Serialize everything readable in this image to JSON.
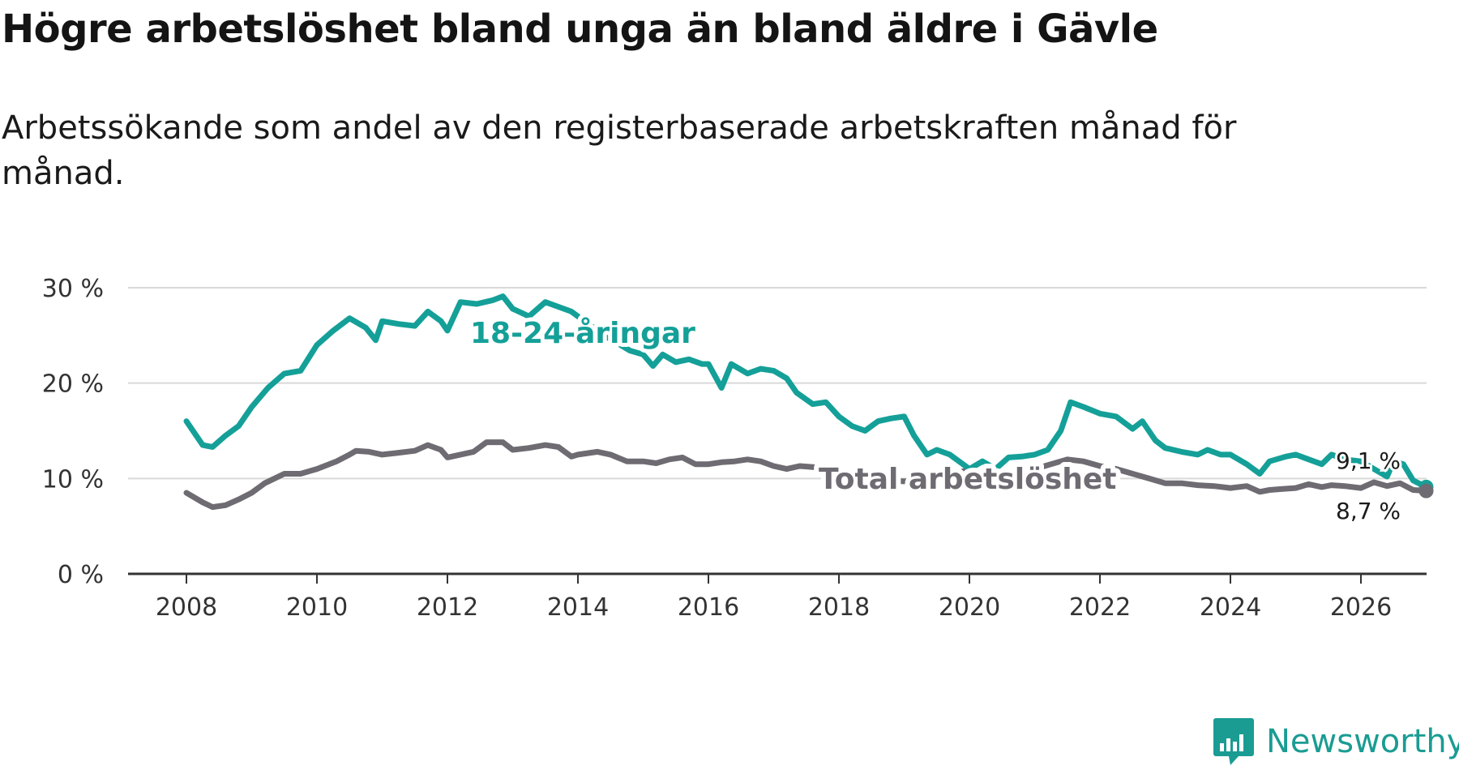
{
  "title": "Högre arbetslöshet bland unga än bland äldre i Gävle",
  "subtitle": "Arbetssökande som andel av den registerbaserade arbetskraften månad för månad.",
  "brand": {
    "name": "Newsworthy",
    "color": "#1a9c93",
    "icon": "bar-chart-speech-bubble-icon"
  },
  "chart_data": {
    "type": "line",
    "title": "Högre arbetslöshet bland unga än bland äldre i Gävle",
    "xlabel": "",
    "ylabel": "",
    "xlim": [
      2008,
      2027
    ],
    "ylim": [
      0,
      30
    ],
    "y_ticks": [
      0,
      10,
      20,
      30
    ],
    "y_tick_labels": [
      "0 %",
      "10 %",
      "20 %",
      "30 %"
    ],
    "x_ticks": [
      2008,
      2010,
      2012,
      2014,
      2016,
      2018,
      2020,
      2022,
      2024,
      2026
    ],
    "x_tick_labels": [
      "2008",
      "2010",
      "2012",
      "2014",
      "2016",
      "2018",
      "2020",
      "2022",
      "2024",
      "2026"
    ],
    "grid": true,
    "series": [
      {
        "name": "18-24-åringar",
        "label": "18-24-åringar",
        "color": "#14a098",
        "end_label": "9,1 %",
        "points": [
          [
            2008.0,
            16.0
          ],
          [
            2008.25,
            13.5
          ],
          [
            2008.4,
            13.3
          ],
          [
            2008.6,
            14.5
          ],
          [
            2008.8,
            15.5
          ],
          [
            2009.0,
            17.5
          ],
          [
            2009.25,
            19.5
          ],
          [
            2009.5,
            21.0
          ],
          [
            2009.75,
            21.3
          ],
          [
            2010.0,
            24.0
          ],
          [
            2010.25,
            25.5
          ],
          [
            2010.5,
            26.8
          ],
          [
            2010.75,
            25.8
          ],
          [
            2010.9,
            24.5
          ],
          [
            2011.0,
            26.5
          ],
          [
            2011.25,
            26.2
          ],
          [
            2011.5,
            26.0
          ],
          [
            2011.7,
            27.5
          ],
          [
            2011.9,
            26.5
          ],
          [
            2012.0,
            25.5
          ],
          [
            2012.2,
            28.5
          ],
          [
            2012.45,
            28.3
          ],
          [
            2012.7,
            28.7
          ],
          [
            2012.85,
            29.1
          ],
          [
            2013.0,
            27.8
          ],
          [
            2013.25,
            27.0
          ],
          [
            2013.5,
            28.5
          ],
          [
            2013.7,
            28.0
          ],
          [
            2013.9,
            27.5
          ],
          [
            2014.0,
            27.0
          ],
          [
            2014.2,
            26.0
          ],
          [
            2014.4,
            25.0
          ],
          [
            2014.6,
            24.2
          ],
          [
            2014.8,
            23.4
          ],
          [
            2015.0,
            23.0
          ],
          [
            2015.15,
            21.8
          ],
          [
            2015.3,
            23.0
          ],
          [
            2015.5,
            22.2
          ],
          [
            2015.7,
            22.5
          ],
          [
            2015.9,
            22.0
          ],
          [
            2016.0,
            22.0
          ],
          [
            2016.2,
            19.5
          ],
          [
            2016.35,
            22.0
          ],
          [
            2016.6,
            21.0
          ],
          [
            2016.8,
            21.5
          ],
          [
            2017.0,
            21.3
          ],
          [
            2017.2,
            20.5
          ],
          [
            2017.35,
            19.0
          ],
          [
            2017.6,
            17.8
          ],
          [
            2017.8,
            18.0
          ],
          [
            2018.0,
            16.5
          ],
          [
            2018.2,
            15.5
          ],
          [
            2018.4,
            15.0
          ],
          [
            2018.6,
            16.0
          ],
          [
            2018.8,
            16.3
          ],
          [
            2019.0,
            16.5
          ],
          [
            2019.15,
            14.5
          ],
          [
            2019.35,
            12.5
          ],
          [
            2019.5,
            13.0
          ],
          [
            2019.7,
            12.5
          ],
          [
            2020.0,
            11.0
          ],
          [
            2020.2,
            11.8
          ],
          [
            2020.4,
            11.0
          ],
          [
            2020.6,
            12.2
          ],
          [
            2020.8,
            12.3
          ],
          [
            2021.0,
            12.5
          ],
          [
            2021.2,
            13.0
          ],
          [
            2021.4,
            15.0
          ],
          [
            2021.55,
            18.0
          ],
          [
            2021.75,
            17.5
          ],
          [
            2022.0,
            16.8
          ],
          [
            2022.25,
            16.5
          ],
          [
            2022.5,
            15.2
          ],
          [
            2022.65,
            16.0
          ],
          [
            2022.85,
            14.0
          ],
          [
            2023.0,
            13.2
          ],
          [
            2023.25,
            12.8
          ],
          [
            2023.5,
            12.5
          ],
          [
            2023.65,
            13.0
          ],
          [
            2023.85,
            12.5
          ],
          [
            2024.0,
            12.5
          ],
          [
            2024.25,
            11.5
          ],
          [
            2024.45,
            10.5
          ],
          [
            2024.6,
            11.8
          ],
          [
            2024.85,
            12.3
          ],
          [
            2025.0,
            12.5
          ],
          [
            2025.2,
            12.0
          ],
          [
            2025.4,
            11.5
          ],
          [
            2025.55,
            12.5
          ],
          [
            2025.75,
            12.0
          ],
          [
            2026.0,
            11.8
          ],
          [
            2026.2,
            11.0
          ],
          [
            2026.4,
            10.2
          ],
          [
            2026.5,
            11.8
          ],
          [
            2026.65,
            11.5
          ],
          [
            2026.8,
            9.8
          ],
          [
            2027.0,
            9.1
          ]
        ]
      },
      {
        "name": "Total arbetslöshet",
        "label": "Total arbetslöshet",
        "color": "#6e6b72",
        "end_label": "8,7 %",
        "points": [
          [
            2008.0,
            8.5
          ],
          [
            2008.25,
            7.5
          ],
          [
            2008.4,
            7.0
          ],
          [
            2008.6,
            7.2
          ],
          [
            2008.8,
            7.8
          ],
          [
            2009.0,
            8.5
          ],
          [
            2009.2,
            9.5
          ],
          [
            2009.5,
            10.5
          ],
          [
            2009.75,
            10.5
          ],
          [
            2010.0,
            11.0
          ],
          [
            2010.3,
            11.8
          ],
          [
            2010.5,
            12.5
          ],
          [
            2010.6,
            12.9
          ],
          [
            2010.8,
            12.8
          ],
          [
            2011.0,
            12.5
          ],
          [
            2011.25,
            12.7
          ],
          [
            2011.5,
            12.9
          ],
          [
            2011.7,
            13.5
          ],
          [
            2011.9,
            13.0
          ],
          [
            2012.0,
            12.2
          ],
          [
            2012.2,
            12.5
          ],
          [
            2012.4,
            12.8
          ],
          [
            2012.6,
            13.8
          ],
          [
            2012.85,
            13.8
          ],
          [
            2013.0,
            13.0
          ],
          [
            2013.25,
            13.2
          ],
          [
            2013.5,
            13.5
          ],
          [
            2013.7,
            13.3
          ],
          [
            2013.9,
            12.3
          ],
          [
            2014.0,
            12.5
          ],
          [
            2014.3,
            12.8
          ],
          [
            2014.5,
            12.5
          ],
          [
            2014.75,
            11.8
          ],
          [
            2015.0,
            11.8
          ],
          [
            2015.2,
            11.6
          ],
          [
            2015.4,
            12.0
          ],
          [
            2015.6,
            12.2
          ],
          [
            2015.8,
            11.5
          ],
          [
            2016.0,
            11.5
          ],
          [
            2016.2,
            11.7
          ],
          [
            2016.4,
            11.8
          ],
          [
            2016.6,
            12.0
          ],
          [
            2016.8,
            11.8
          ],
          [
            2017.0,
            11.3
          ],
          [
            2017.2,
            11.0
          ],
          [
            2017.4,
            11.3
          ],
          [
            2017.6,
            11.2
          ],
          [
            2017.8,
            11.0
          ],
          [
            2018.0,
            10.5
          ],
          [
            2018.3,
            10.5
          ],
          [
            2018.5,
            10.0
          ],
          [
            2018.75,
            9.8
          ],
          [
            2019.0,
            9.7
          ],
          [
            2019.3,
            9.8
          ],
          [
            2019.6,
            10.0
          ],
          [
            2019.8,
            10.5
          ],
          [
            2020.0,
            11.0
          ],
          [
            2020.2,
            10.5
          ],
          [
            2020.4,
            10.0
          ],
          [
            2020.6,
            10.2
          ],
          [
            2020.8,
            10.6
          ],
          [
            2021.0,
            11.0
          ],
          [
            2021.25,
            11.5
          ],
          [
            2021.5,
            12.0
          ],
          [
            2021.75,
            11.8
          ],
          [
            2022.0,
            11.3
          ],
          [
            2022.25,
            11.0
          ],
          [
            2022.5,
            10.5
          ],
          [
            2022.75,
            10.0
          ],
          [
            2023.0,
            9.5
          ],
          [
            2023.25,
            9.5
          ],
          [
            2023.5,
            9.3
          ],
          [
            2023.75,
            9.2
          ],
          [
            2024.0,
            9.0
          ],
          [
            2024.25,
            9.2
          ],
          [
            2024.45,
            8.6
          ],
          [
            2024.6,
            8.8
          ],
          [
            2024.8,
            8.9
          ],
          [
            2025.0,
            9.0
          ],
          [
            2025.2,
            9.4
          ],
          [
            2025.4,
            9.1
          ],
          [
            2025.55,
            9.3
          ],
          [
            2025.75,
            9.2
          ],
          [
            2026.0,
            9.0
          ],
          [
            2026.2,
            9.6
          ],
          [
            2026.4,
            9.2
          ],
          [
            2026.6,
            9.5
          ],
          [
            2026.8,
            8.8
          ],
          [
            2027.0,
            8.7
          ]
        ]
      }
    ]
  }
}
